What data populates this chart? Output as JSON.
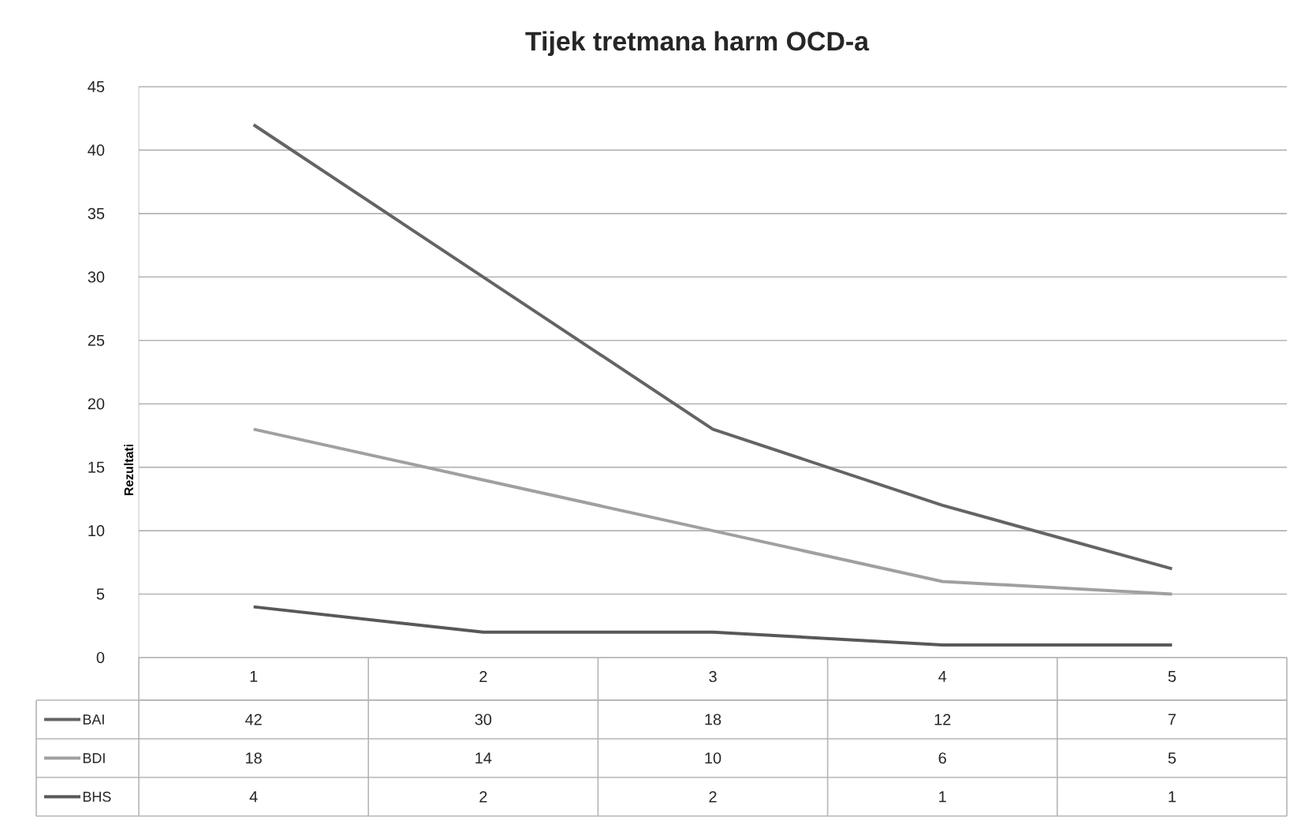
{
  "chart_data": {
    "type": "line",
    "title": "Tijek tretmana harm OCD-a",
    "ylabel": "Rezultati",
    "categories": [
      "1",
      "2",
      "3",
      "4",
      "5"
    ],
    "series": [
      {
        "name": "BAI",
        "color": "#646464",
        "values": [
          42,
          30,
          18,
          12,
          7
        ]
      },
      {
        "name": "BDI",
        "color": "#a0a0a0",
        "values": [
          18,
          14,
          10,
          6,
          5
        ]
      },
      {
        "name": "BHS",
        "color": "#585858",
        "values": [
          4,
          2,
          2,
          1,
          1
        ]
      }
    ],
    "ylim": [
      0,
      45
    ],
    "yticks": [
      0,
      5,
      10,
      15,
      20,
      25,
      30,
      35,
      40,
      45
    ],
    "grid": "y",
    "data_labels": true,
    "legend": "bottom",
    "marker": "none",
    "line_style": "solid"
  }
}
